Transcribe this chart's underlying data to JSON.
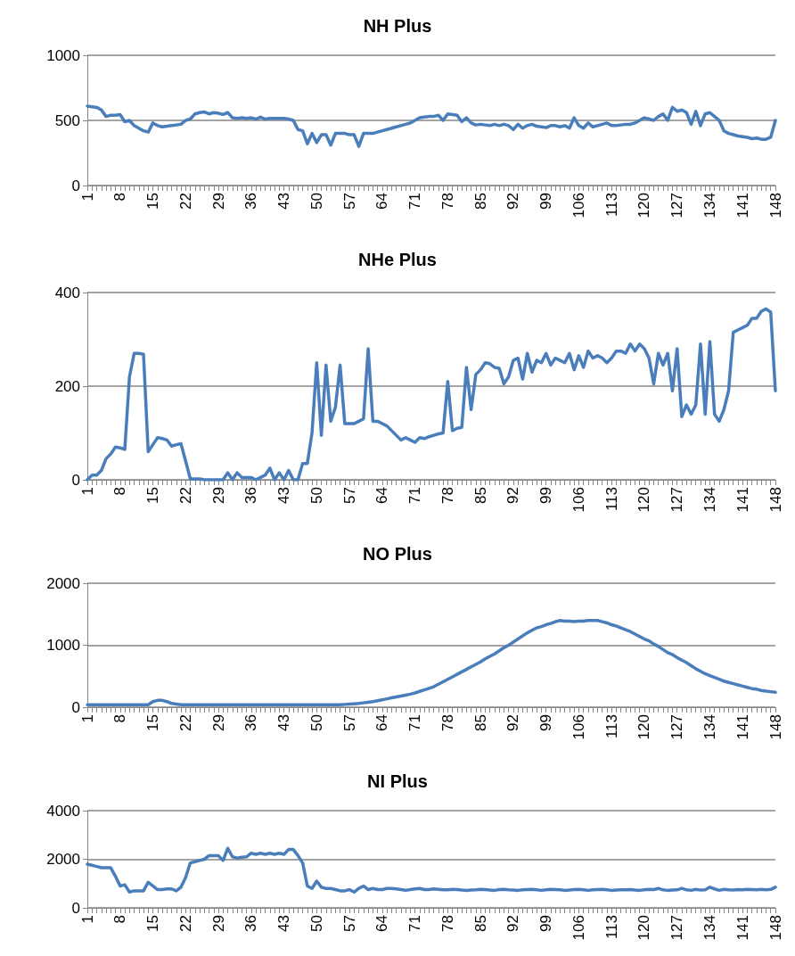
{
  "chart_data": [
    {
      "type": "line",
      "title": "NH Plus",
      "categories": [
        "1",
        null,
        null,
        null,
        null,
        null,
        null,
        "8",
        null,
        null,
        null,
        null,
        null,
        null,
        "15",
        null,
        null,
        null,
        null,
        null,
        null,
        "22",
        null,
        null,
        null,
        null,
        null,
        null,
        "29",
        null,
        null,
        null,
        null,
        null,
        null,
        "36",
        null,
        null,
        null,
        null,
        null,
        null,
        "43",
        null,
        null,
        null,
        null,
        null,
        null,
        "50",
        null,
        null,
        null,
        null,
        null,
        null,
        "57",
        null,
        null,
        null,
        null,
        null,
        null,
        "64",
        null,
        null,
        null,
        null,
        null,
        null,
        "71",
        null,
        null,
        null,
        null,
        null,
        null,
        "78",
        null,
        null,
        null,
        null,
        null,
        null,
        "85",
        null,
        null,
        null,
        null,
        null,
        null,
        "92",
        null,
        null,
        null,
        null,
        null,
        null,
        "99",
        null,
        null,
        null,
        null,
        null,
        null,
        "106",
        null,
        null,
        null,
        null,
        null,
        null,
        "113",
        null,
        null,
        null,
        null,
        null,
        null,
        "120",
        null,
        null,
        null,
        null,
        null,
        null,
        "127",
        null,
        null,
        null,
        null,
        null,
        null,
        "134",
        null,
        null,
        null,
        null,
        null,
        null,
        "141",
        null,
        null,
        null,
        null,
        null,
        null,
        "148"
      ],
      "series": [
        {
          "color": "#4a7ebb",
          "values": [
            610,
            605,
            600,
            580,
            530,
            540,
            540,
            545,
            490,
            500,
            460,
            440,
            420,
            410,
            480,
            460,
            450,
            455,
            460,
            465,
            470,
            500,
            510,
            550,
            560,
            565,
            550,
            560,
            555,
            545,
            560,
            520,
            515,
            520,
            515,
            520,
            510,
            525,
            510,
            515,
            515,
            515,
            515,
            510,
            500,
            430,
            420,
            320,
            400,
            330,
            390,
            390,
            310,
            400,
            400,
            400,
            390,
            390,
            300,
            400,
            400,
            400,
            410,
            420,
            430,
            440,
            450,
            460,
            470,
            480,
            500,
            520,
            525,
            530,
            530,
            540,
            500,
            550,
            545,
            540,
            490,
            520,
            480,
            465,
            470,
            465,
            460,
            470,
            460,
            470,
            460,
            430,
            470,
            440,
            460,
            470,
            455,
            450,
            445,
            460,
            460,
            450,
            460,
            440,
            520,
            460,
            440,
            480,
            450,
            460,
            470,
            480,
            460,
            460,
            465,
            470,
            470,
            480,
            500,
            520,
            510,
            500,
            530,
            550,
            500,
            600,
            570,
            580,
            560,
            470,
            570,
            460,
            550,
            560,
            530,
            500,
            420,
            400,
            390,
            380,
            375,
            370,
            360,
            365,
            355,
            355,
            370,
            500
          ]
        }
      ],
      "ylim": [
        0,
        1000
      ],
      "yticks": [
        0,
        500,
        1000
      ],
      "grid": "y",
      "marker": "none",
      "line_style": "solid"
    },
    {
      "type": "line",
      "title": "NHe Plus",
      "categories": [
        "1",
        null,
        null,
        null,
        null,
        null,
        null,
        "8",
        null,
        null,
        null,
        null,
        null,
        null,
        "15",
        null,
        null,
        null,
        null,
        null,
        null,
        "22",
        null,
        null,
        null,
        null,
        null,
        null,
        "29",
        null,
        null,
        null,
        null,
        null,
        null,
        "36",
        null,
        null,
        null,
        null,
        null,
        null,
        "43",
        null,
        null,
        null,
        null,
        null,
        null,
        "50",
        null,
        null,
        null,
        null,
        null,
        null,
        "57",
        null,
        null,
        null,
        null,
        null,
        null,
        "64",
        null,
        null,
        null,
        null,
        null,
        null,
        "71",
        null,
        null,
        null,
        null,
        null,
        null,
        "78",
        null,
        null,
        null,
        null,
        null,
        null,
        "85",
        null,
        null,
        null,
        null,
        null,
        null,
        "92",
        null,
        null,
        null,
        null,
        null,
        null,
        "99",
        null,
        null,
        null,
        null,
        null,
        null,
        "106",
        null,
        null,
        null,
        null,
        null,
        null,
        "113",
        null,
        null,
        null,
        null,
        null,
        null,
        "120",
        null,
        null,
        null,
        null,
        null,
        null,
        "127",
        null,
        null,
        null,
        null,
        null,
        null,
        "134",
        null,
        null,
        null,
        null,
        null,
        null,
        "141",
        null,
        null,
        null,
        null,
        null,
        null,
        "148"
      ],
      "series": [
        {
          "color": "#4a7ebb",
          "values": [
            0,
            10,
            10,
            20,
            45,
            55,
            70,
            68,
            65,
            220,
            270,
            270,
            268,
            60,
            75,
            90,
            88,
            85,
            72,
            75,
            77,
            40,
            2,
            2,
            2,
            0,
            0,
            0,
            0,
            0,
            15,
            0,
            15,
            5,
            5,
            5,
            0,
            5,
            10,
            25,
            0,
            15,
            0,
            20,
            0,
            0,
            35,
            35,
            100,
            250,
            95,
            245,
            125,
            155,
            245,
            120,
            120,
            120,
            125,
            130,
            280,
            125,
            125,
            120,
            115,
            105,
            95,
            85,
            90,
            85,
            80,
            90,
            88,
            92,
            95,
            98,
            100,
            210,
            105,
            110,
            112,
            240,
            150,
            225,
            235,
            250,
            248,
            240,
            238,
            205,
            220,
            255,
            260,
            215,
            270,
            230,
            255,
            250,
            270,
            245,
            260,
            255,
            250,
            270,
            235,
            265,
            240,
            275,
            260,
            265,
            260,
            250,
            260,
            275,
            275,
            270,
            290,
            275,
            290,
            280,
            260,
            205,
            270,
            245,
            270,
            190,
            280,
            135,
            160,
            140,
            160,
            290,
            140,
            295,
            140,
            125,
            150,
            190,
            315,
            320,
            325,
            330,
            345,
            345,
            360,
            365,
            358,
            190
          ]
        }
      ],
      "ylim": [
        0,
        400
      ],
      "yticks": [
        0,
        200,
        400
      ],
      "grid": "y",
      "marker": "none",
      "line_style": "solid"
    },
    {
      "type": "line",
      "title": "NO Plus",
      "categories": [
        "1",
        null,
        null,
        null,
        null,
        null,
        null,
        "8",
        null,
        null,
        null,
        null,
        null,
        null,
        "15",
        null,
        null,
        null,
        null,
        null,
        null,
        "22",
        null,
        null,
        null,
        null,
        null,
        null,
        "29",
        null,
        null,
        null,
        null,
        null,
        null,
        "36",
        null,
        null,
        null,
        null,
        null,
        null,
        "43",
        null,
        null,
        null,
        null,
        null,
        null,
        "50",
        null,
        null,
        null,
        null,
        null,
        null,
        "57",
        null,
        null,
        null,
        null,
        null,
        null,
        "64",
        null,
        null,
        null,
        null,
        null,
        null,
        "71",
        null,
        null,
        null,
        null,
        null,
        null,
        "78",
        null,
        null,
        null,
        null,
        null,
        null,
        "85",
        null,
        null,
        null,
        null,
        null,
        null,
        "92",
        null,
        null,
        null,
        null,
        null,
        null,
        "99",
        null,
        null,
        null,
        null,
        null,
        null,
        "106",
        null,
        null,
        null,
        null,
        null,
        null,
        "113",
        null,
        null,
        null,
        null,
        null,
        null,
        "120",
        null,
        null,
        null,
        null,
        null,
        null,
        "127",
        null,
        null,
        null,
        null,
        null,
        null,
        "134",
        null,
        null,
        null,
        null,
        null,
        null,
        "141",
        null,
        null,
        null,
        null,
        null,
        null,
        "148"
      ],
      "series": [
        {
          "color": "#4a7ebb",
          "values": [
            40,
            40,
            40,
            40,
            40,
            40,
            40,
            40,
            40,
            40,
            40,
            40,
            40,
            40,
            90,
            110,
            110,
            90,
            60,
            50,
            40,
            40,
            40,
            40,
            40,
            40,
            40,
            40,
            40,
            40,
            40,
            40,
            40,
            40,
            40,
            40,
            40,
            40,
            40,
            40,
            40,
            40,
            40,
            40,
            40,
            40,
            40,
            40,
            40,
            40,
            40,
            40,
            40,
            40,
            40,
            45,
            50,
            55,
            60,
            70,
            80,
            90,
            105,
            120,
            135,
            150,
            165,
            180,
            195,
            210,
            230,
            255,
            280,
            305,
            330,
            370,
            410,
            450,
            490,
            530,
            570,
            610,
            650,
            690,
            730,
            780,
            820,
            860,
            910,
            960,
            1000,
            1050,
            1100,
            1150,
            1200,
            1240,
            1280,
            1300,
            1330,
            1350,
            1380,
            1400,
            1390,
            1390,
            1380,
            1390,
            1390,
            1400,
            1400,
            1400,
            1380,
            1360,
            1330,
            1310,
            1280,
            1250,
            1220,
            1180,
            1140,
            1100,
            1070,
            1020,
            980,
            930,
            880,
            850,
            800,
            760,
            720,
            670,
            620,
            580,
            540,
            510,
            480,
            450,
            420,
            400,
            380,
            360,
            340,
            320,
            300,
            290,
            270,
            260,
            250,
            240
          ]
        }
      ],
      "ylim": [
        0,
        2000
      ],
      "yticks": [
        0,
        1000,
        2000
      ],
      "grid": "y",
      "marker": "none",
      "line_style": "solid"
    },
    {
      "type": "line",
      "title": "NI Plus",
      "categories": [
        "1",
        null,
        null,
        null,
        null,
        null,
        null,
        "8",
        null,
        null,
        null,
        null,
        null,
        null,
        "15",
        null,
        null,
        null,
        null,
        null,
        null,
        "22",
        null,
        null,
        null,
        null,
        null,
        null,
        "29",
        null,
        null,
        null,
        null,
        null,
        null,
        "36",
        null,
        null,
        null,
        null,
        null,
        null,
        "43",
        null,
        null,
        null,
        null,
        null,
        null,
        "50",
        null,
        null,
        null,
        null,
        null,
        null,
        "57",
        null,
        null,
        null,
        null,
        null,
        null,
        "64",
        null,
        null,
        null,
        null,
        null,
        null,
        "71",
        null,
        null,
        null,
        null,
        null,
        null,
        "78",
        null,
        null,
        null,
        null,
        null,
        null,
        "85",
        null,
        null,
        null,
        null,
        null,
        null,
        "92",
        null,
        null,
        null,
        null,
        null,
        null,
        "99",
        null,
        null,
        null,
        null,
        null,
        null,
        "106",
        null,
        null,
        null,
        null,
        null,
        null,
        "113",
        null,
        null,
        null,
        null,
        null,
        null,
        "120",
        null,
        null,
        null,
        null,
        null,
        null,
        "127",
        null,
        null,
        null,
        null,
        null,
        null,
        "134",
        null,
        null,
        null,
        null,
        null,
        null,
        "141",
        null,
        null,
        null,
        null,
        null,
        null,
        "148"
      ],
      "series": [
        {
          "color": "#4a7ebb",
          "values": [
            1800,
            1750,
            1700,
            1650,
            1650,
            1650,
            1300,
            900,
            950,
            650,
            700,
            700,
            700,
            1050,
            900,
            750,
            750,
            780,
            780,
            700,
            850,
            1250,
            1850,
            1900,
            1950,
            2000,
            2150,
            2150,
            2150,
            1950,
            2450,
            2100,
            2050,
            2080,
            2100,
            2250,
            2200,
            2250,
            2200,
            2250,
            2200,
            2250,
            2200,
            2400,
            2400,
            2150,
            1850,
            900,
            800,
            1100,
            850,
            800,
            800,
            750,
            700,
            700,
            750,
            650,
            800,
            900,
            750,
            800,
            750,
            750,
            800,
            800,
            780,
            750,
            720,
            750,
            780,
            800,
            750,
            750,
            780,
            760,
            740,
            740,
            760,
            750,
            730,
            720,
            730,
            740,
            760,
            750,
            730,
            720,
            750,
            760,
            740,
            730,
            720,
            740,
            750,
            760,
            740,
            720,
            740,
            760,
            750,
            740,
            720,
            730,
            750,
            760,
            740,
            720,
            740,
            750,
            760,
            740,
            720,
            730,
            740,
            740,
            750,
            730,
            720,
            740,
            760,
            750,
            800,
            740,
            720,
            730,
            740,
            800,
            740,
            720,
            760,
            730,
            740,
            850,
            780,
            720,
            760,
            740,
            730,
            750,
            740,
            760,
            750,
            740,
            760,
            740,
            760,
            850
          ]
        }
      ],
      "ylim": [
        0,
        4000
      ],
      "yticks": [
        0,
        2000,
        4000
      ],
      "grid": "y",
      "marker": "none",
      "line_style": "solid"
    }
  ]
}
